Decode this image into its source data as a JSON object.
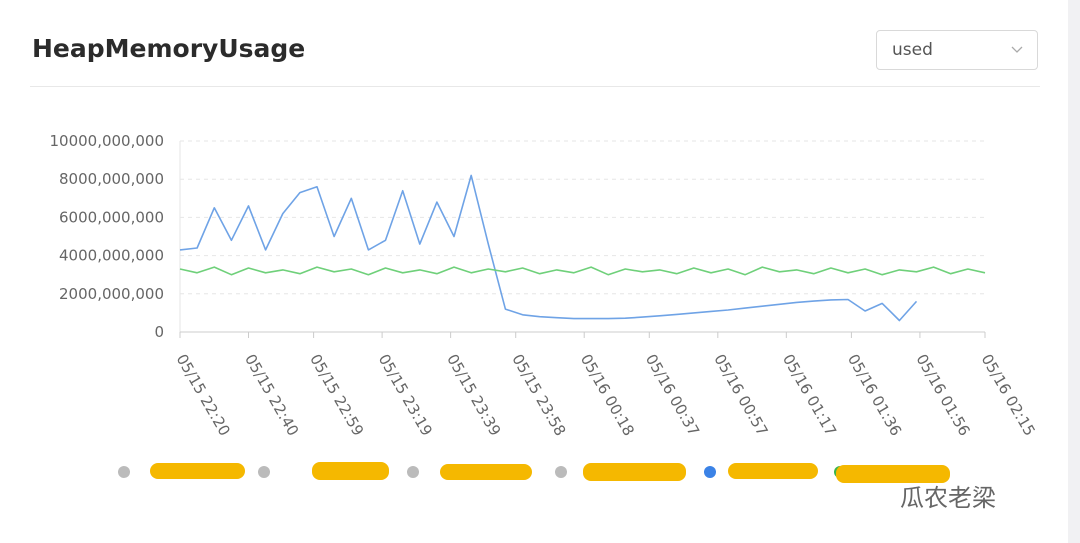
{
  "header": {
    "title": "HeapMemoryUsage",
    "select": "used"
  },
  "chart_data": {
    "type": "line",
    "x": [
      "05/15 22:20",
      "05/15 22:25",
      "05/15 22:30",
      "05/15 22:35",
      "05/15 22:40",
      "05/15 22:45",
      "05/15 22:50",
      "05/15 22:55",
      "05/15 23:00",
      "05/15 23:05",
      "05/15 23:10",
      "05/15 23:15",
      "05/15 23:20",
      "05/15 23:25",
      "05/15 23:30",
      "05/15 23:35",
      "05/15 23:40",
      "05/15 23:45",
      "05/15 23:50",
      "05/15 23:55",
      "05/16 00:00",
      "05/16 00:05",
      "05/16 00:10",
      "05/16 00:15",
      "05/16 00:20",
      "05/16 00:25",
      "05/16 00:30",
      "05/16 00:35",
      "05/16 00:40",
      "05/16 00:45",
      "05/16 00:50",
      "05/16 00:55",
      "05/16 01:00",
      "05/16 01:05",
      "05/16 01:10",
      "05/16 01:15",
      "05/16 01:20",
      "05/16 01:25",
      "05/16 01:30",
      "05/16 01:35",
      "05/16 01:40",
      "05/16 01:45",
      "05/16 01:50",
      "05/16 01:55",
      "05/16 02:00",
      "05/16 02:05",
      "05/16 02:10",
      "05/16 02:15"
    ],
    "xlim": [
      "05/15 22:20",
      "05/16 02:15"
    ],
    "xticks": [
      "05/15 22:20",
      "05/15 22:40",
      "05/15 22:59",
      "05/15 23:19",
      "05/15 23:39",
      "05/15 23:58",
      "05/16 00:18",
      "05/16 00:37",
      "05/16 00:57",
      "05/16 01:17",
      "05/16 01:36",
      "05/16 01:56",
      "05/16 02:15"
    ],
    "ylim": [
      0,
      10000000000
    ],
    "yticks": [
      0,
      {
        "value": 2000000000,
        "label": "2000,000,000"
      },
      {
        "value": 4000000000,
        "label": "4000,000,000"
      },
      {
        "value": 6000000000,
        "label": "6000,000,000"
      },
      {
        "value": 8000000000,
        "label": "8000,000,000"
      },
      {
        "value": 10000000000,
        "label": "10000,000,000"
      }
    ],
    "grid": true,
    "series": [
      {
        "color": "#6fa3e6",
        "values": [
          4300000000,
          4400000000,
          6500000000,
          4800000000,
          6600000000,
          4300000000,
          6200000000,
          7300000000,
          7600000000,
          5000000000,
          7000000000,
          4300000000,
          4800000000,
          7400000000,
          4600000000,
          6800000000,
          5000000000,
          8200000000,
          4600000000,
          1200000000,
          900000000,
          800000000,
          750000000,
          700000000,
          700000000,
          700000000,
          720000000,
          780000000,
          850000000,
          920000000,
          1000000000,
          1080000000,
          1150000000,
          1250000000,
          1350000000,
          1450000000,
          1550000000,
          1620000000,
          1680000000,
          1700000000,
          1100000000,
          1500000000,
          600000000,
          1600000000,
          null,
          null,
          null,
          null
        ]
      },
      {
        "color": "#6fd07a",
        "values": [
          3300000000,
          3100000000,
          3400000000,
          3000000000,
          3350000000,
          3100000000,
          3250000000,
          3050000000,
          3400000000,
          3150000000,
          3300000000,
          3000000000,
          3350000000,
          3100000000,
          3250000000,
          3050000000,
          3400000000,
          3100000000,
          3300000000,
          3150000000,
          3350000000,
          3050000000,
          3250000000,
          3100000000,
          3400000000,
          3000000000,
          3300000000,
          3150000000,
          3250000000,
          3050000000,
          3350000000,
          3100000000,
          3300000000,
          3000000000,
          3400000000,
          3150000000,
          3250000000,
          3050000000,
          3350000000,
          3100000000,
          3300000000,
          3000000000,
          3250000000,
          3150000000,
          3400000000,
          3050000000,
          3300000000,
          3100000000
        ]
      }
    ]
  },
  "watermark": "瓜农老梁"
}
